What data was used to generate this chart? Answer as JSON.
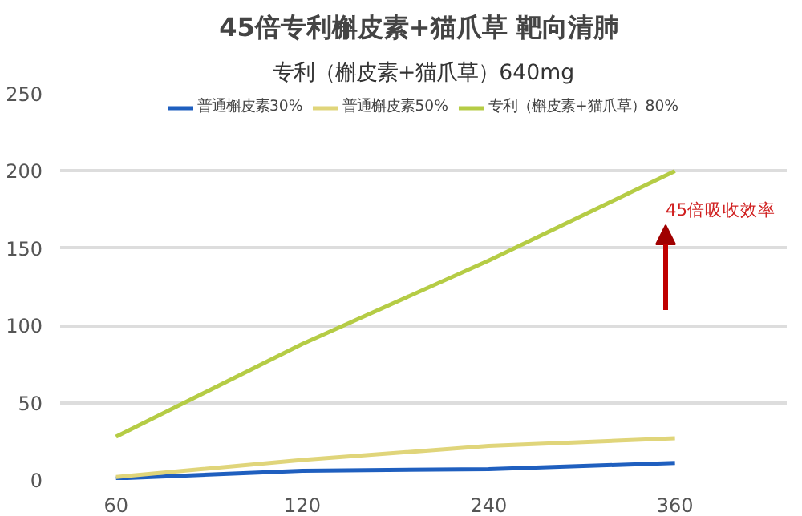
{
  "chart_data": {
    "type": "line",
    "title": "45倍专利槲皮素+猫爪草  靶向清肺",
    "subtitle": "专利（槲皮素+猫爪草）640mg",
    "categories": [
      "60",
      "120",
      "240",
      "360"
    ],
    "series": [
      {
        "name": "普通槲皮素30%",
        "color": "#1f5fbf",
        "values": [
          1,
          6,
          7,
          11
        ]
      },
      {
        "name": "普通槲皮素50%",
        "color": "#e0d57a",
        "values": [
          2,
          13,
          22,
          27
        ]
      },
      {
        "name": "专利（槲皮素+猫爪草）80%",
        "color": "#b5cc45",
        "values": [
          28,
          88,
          142,
          200
        ]
      }
    ],
    "ylim": [
      0,
      250
    ],
    "yticks": [
      0,
      50,
      100,
      150,
      200,
      250
    ],
    "grid": "y",
    "legend": "top",
    "annotations": [
      "45倍吸收效率"
    ]
  }
}
